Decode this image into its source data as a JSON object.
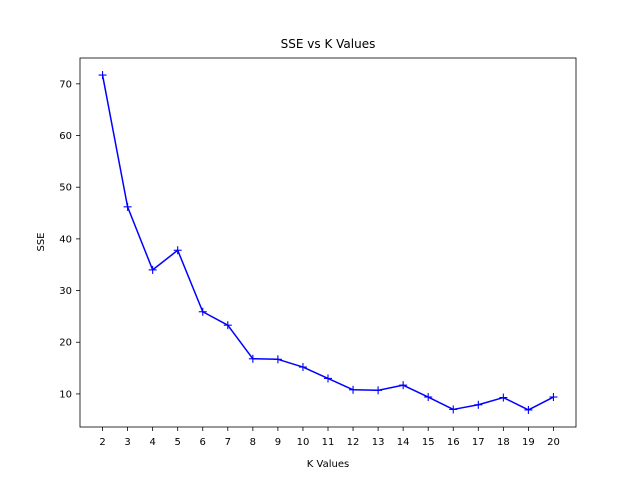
{
  "chart_data": {
    "type": "line",
    "title": "SSE vs K Values",
    "xlabel": "K Values",
    "ylabel": "SSE",
    "x": [
      2,
      3,
      4,
      5,
      6,
      7,
      8,
      9,
      10,
      11,
      12,
      13,
      14,
      15,
      16,
      17,
      18,
      19,
      20
    ],
    "x_tick_labels": [
      "2",
      "3",
      "4",
      "5",
      "6",
      "7",
      "8",
      "9",
      "10",
      "11",
      "12",
      "13",
      "14",
      "15",
      "16",
      "17",
      "18",
      "19",
      "20"
    ],
    "y_ticks": [
      10,
      20,
      30,
      40,
      50,
      60,
      70
    ],
    "y_tick_labels": [
      "10",
      "20",
      "30",
      "40",
      "50",
      "60",
      "70"
    ],
    "xlim": [
      1.1,
      20.9
    ],
    "ylim": [
      3.6,
      75.0
    ],
    "series": [
      {
        "values": [
          71.7,
          46.2,
          34.0,
          37.8,
          25.9,
          23.3,
          16.8,
          16.7,
          15.2,
          13.0,
          10.8,
          10.7,
          11.7,
          9.4,
          7.0,
          7.9,
          9.3,
          6.9,
          9.4
        ],
        "color": "#0000ff",
        "marker": "+"
      }
    ],
    "grid": false,
    "legend": "none"
  }
}
